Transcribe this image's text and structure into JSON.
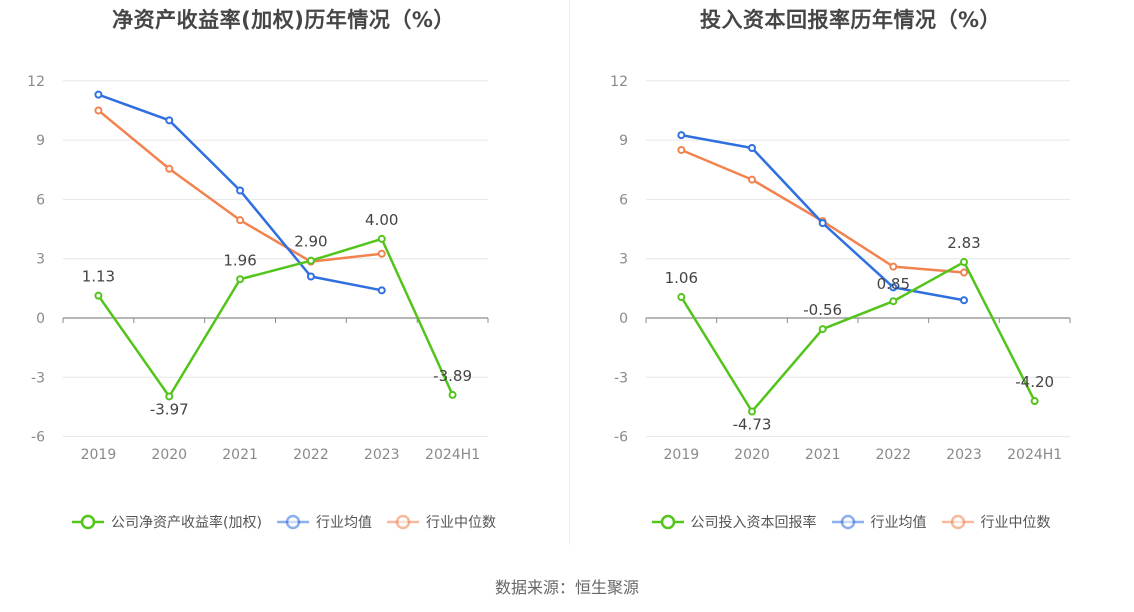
{
  "source_text": "数据来源：恒生聚源",
  "chart_data": [
    {
      "type": "line",
      "title": "净资产收益率(加权)历年情况（%）",
      "xlabel": "",
      "ylabel": "",
      "categories": [
        "2019",
        "2020",
        "2021",
        "2022",
        "2023",
        "2024H1"
      ],
      "ylim": [
        -6,
        12
      ],
      "yticks": [
        -6,
        -3,
        0,
        3,
        6,
        9,
        12
      ],
      "grid": true,
      "legend_position": "bottom",
      "series": [
        {
          "name": "公司净资产收益率(加权)",
          "color": "#52c41a",
          "values": [
            1.13,
            -3.97,
            1.96,
            2.9,
            4.0,
            -3.89
          ],
          "labels": [
            "1.13",
            "-3.97",
            "1.96",
            "2.90",
            "4.00",
            "-3.89"
          ]
        },
        {
          "name": "行业均值",
          "color": "#2f6fdf",
          "values": [
            11.3,
            10.0,
            6.45,
            2.1,
            1.4,
            null
          ]
        },
        {
          "name": "行业中位数",
          "color": "#f2834f",
          "values": [
            10.5,
            7.55,
            4.95,
            2.85,
            3.25,
            null
          ]
        }
      ]
    },
    {
      "type": "line",
      "title": "投入资本回报率历年情况（%）",
      "xlabel": "",
      "ylabel": "",
      "categories": [
        "2019",
        "2020",
        "2021",
        "2022",
        "2023",
        "2024H1"
      ],
      "ylim": [
        -6,
        12
      ],
      "yticks": [
        -6,
        -3,
        0,
        3,
        6,
        9,
        12
      ],
      "grid": true,
      "legend_position": "bottom",
      "series": [
        {
          "name": "公司投入资本回报率",
          "color": "#52c41a",
          "values": [
            1.06,
            -4.73,
            -0.56,
            0.85,
            2.83,
            -4.2
          ],
          "labels": [
            "1.06",
            "-4.73",
            "-0.56",
            "0.85",
            "2.83",
            "-4.20"
          ]
        },
        {
          "name": "行业均值",
          "color": "#2f6fdf",
          "values": [
            9.25,
            8.6,
            4.8,
            1.55,
            0.9,
            null
          ]
        },
        {
          "name": "行业中位数",
          "color": "#f2834f",
          "values": [
            8.5,
            7.0,
            4.9,
            2.6,
            2.3,
            null
          ]
        }
      ]
    }
  ]
}
